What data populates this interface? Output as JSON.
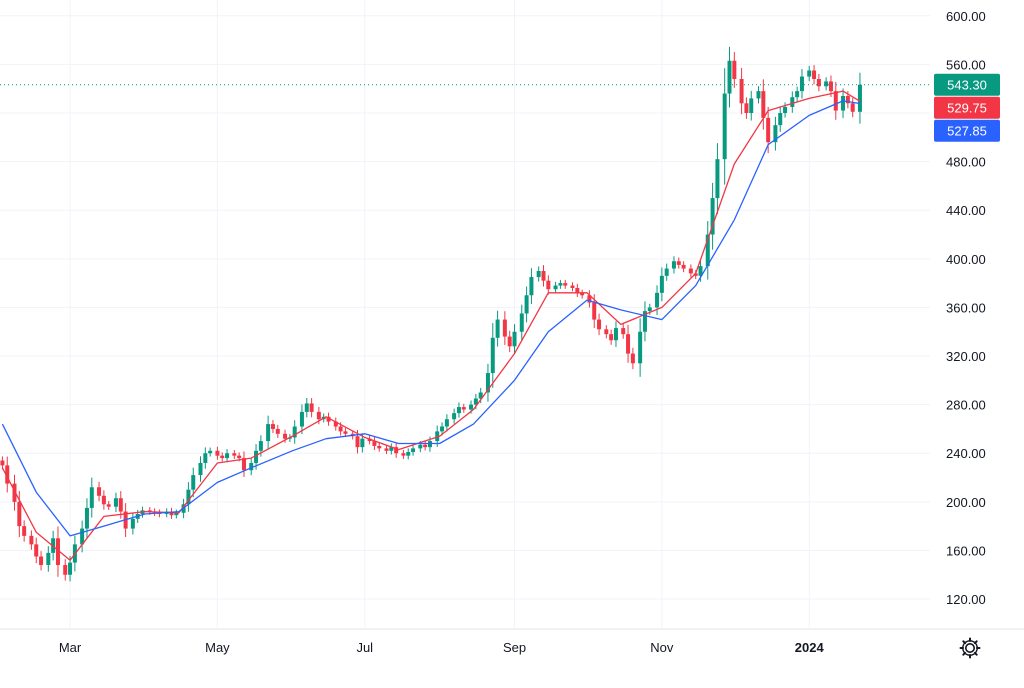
{
  "chart_data": {
    "type": "candlestick",
    "y_ticks": [
      "120.00",
      "160.00",
      "200.00",
      "240.00",
      "280.00",
      "320.00",
      "360.00",
      "400.00",
      "440.00",
      "480.00",
      "520.00",
      "560.00",
      "600.00"
    ],
    "y_tick_values": [
      120,
      160,
      200,
      240,
      280,
      320,
      360,
      400,
      440,
      480,
      520,
      560,
      600
    ],
    "ylim": [
      97,
      613
    ],
    "x_ticks": [
      "Mar",
      "May",
      "Jul",
      "Sep",
      "Nov",
      "2024"
    ],
    "x_tick_dates": [
      "2023-03-01",
      "2023-05-01",
      "2023-07-01",
      "2023-09-01",
      "2023-11-01",
      "2024-01-01"
    ],
    "xlim": [
      "2023-01-31",
      "2024-02-20"
    ],
    "grid": true,
    "price_labels": [
      {
        "text": "543.30",
        "value": 543.3,
        "color": "#089981"
      },
      {
        "text": "529.75",
        "value": 529.75,
        "color": "#f23645"
      },
      {
        "text": "527.85",
        "value": 527.85,
        "color": "#2962ff"
      }
    ],
    "last_price_line": {
      "value": 543.3,
      "color": "#089981"
    },
    "close_series": [
      [
        "2023-02-01",
        230
      ],
      [
        "2023-02-03",
        215
      ],
      [
        "2023-02-06",
        200
      ],
      [
        "2023-02-08",
        180
      ],
      [
        "2023-02-10",
        172
      ],
      [
        "2023-02-13",
        165
      ],
      [
        "2023-02-15",
        155
      ],
      [
        "2023-02-17",
        148
      ],
      [
        "2023-02-20",
        158
      ],
      [
        "2023-02-22",
        170
      ],
      [
        "2023-02-24",
        148
      ],
      [
        "2023-02-27",
        140
      ],
      [
        "2023-03-01",
        150
      ],
      [
        "2023-03-03",
        165
      ],
      [
        "2023-03-06",
        178
      ],
      [
        "2023-03-08",
        195
      ],
      [
        "2023-03-10",
        212
      ],
      [
        "2023-03-13",
        205
      ],
      [
        "2023-03-15",
        198
      ],
      [
        "2023-03-17",
        196
      ],
      [
        "2023-03-20",
        203
      ],
      [
        "2023-03-22",
        192
      ],
      [
        "2023-03-24",
        178
      ],
      [
        "2023-03-27",
        186
      ],
      [
        "2023-03-29",
        190
      ],
      [
        "2023-03-31",
        193
      ],
      [
        "2023-04-03",
        192
      ],
      [
        "2023-04-05",
        191
      ],
      [
        "2023-04-07",
        190
      ],
      [
        "2023-04-10",
        192
      ],
      [
        "2023-04-12",
        189
      ],
      [
        "2023-04-14",
        191
      ],
      [
        "2023-04-17",
        198
      ],
      [
        "2023-04-19",
        210
      ],
      [
        "2023-04-21",
        222
      ],
      [
        "2023-04-24",
        232
      ],
      [
        "2023-04-26",
        240
      ],
      [
        "2023-04-28",
        242
      ],
      [
        "2023-05-01",
        238
      ],
      [
        "2023-05-03",
        236
      ],
      [
        "2023-05-05",
        240
      ],
      [
        "2023-05-08",
        238
      ],
      [
        "2023-05-10",
        236
      ],
      [
        "2023-05-12",
        226
      ],
      [
        "2023-05-15",
        232
      ],
      [
        "2023-05-17",
        242
      ],
      [
        "2023-05-19",
        250
      ],
      [
        "2023-05-22",
        264
      ],
      [
        "2023-05-24",
        260
      ],
      [
        "2023-05-26",
        256
      ],
      [
        "2023-05-29",
        252
      ],
      [
        "2023-05-31",
        253
      ],
      [
        "2023-06-02",
        262
      ],
      [
        "2023-06-05",
        274
      ],
      [
        "2023-06-07",
        281
      ],
      [
        "2023-06-09",
        274
      ],
      [
        "2023-06-12",
        268
      ],
      [
        "2023-06-14",
        270
      ],
      [
        "2023-06-16",
        266
      ],
      [
        "2023-06-19",
        262
      ],
      [
        "2023-06-21",
        258
      ],
      [
        "2023-06-23",
        256
      ],
      [
        "2023-06-26",
        254
      ],
      [
        "2023-06-28",
        245
      ],
      [
        "2023-06-30",
        252
      ],
      [
        "2023-07-03",
        250
      ],
      [
        "2023-07-05",
        246
      ],
      [
        "2023-07-07",
        244
      ],
      [
        "2023-07-10",
        242
      ],
      [
        "2023-07-12",
        245
      ],
      [
        "2023-07-14",
        240
      ],
      [
        "2023-07-17",
        238
      ],
      [
        "2023-07-19",
        241
      ],
      [
        "2023-07-21",
        244
      ],
      [
        "2023-07-24",
        247
      ],
      [
        "2023-07-26",
        245
      ],
      [
        "2023-07-28",
        250
      ],
      [
        "2023-07-31",
        258
      ],
      [
        "2023-08-02",
        262
      ],
      [
        "2023-08-04",
        268
      ],
      [
        "2023-08-07",
        273
      ],
      [
        "2023-08-09",
        278
      ],
      [
        "2023-08-11",
        276
      ],
      [
        "2023-08-14",
        280
      ],
      [
        "2023-08-16",
        285
      ],
      [
        "2023-08-18",
        290
      ],
      [
        "2023-08-21",
        306
      ],
      [
        "2023-08-23",
        335
      ],
      [
        "2023-08-25",
        350
      ],
      [
        "2023-08-28",
        336
      ],
      [
        "2023-08-30",
        328
      ],
      [
        "2023-09-01",
        340
      ],
      [
        "2023-09-04",
        355
      ],
      [
        "2023-09-06",
        370
      ],
      [
        "2023-09-08",
        385
      ],
      [
        "2023-09-11",
        390
      ],
      [
        "2023-09-13",
        382
      ],
      [
        "2023-09-15",
        375
      ],
      [
        "2023-09-18",
        378
      ],
      [
        "2023-09-20",
        380
      ],
      [
        "2023-09-22",
        378
      ],
      [
        "2023-09-25",
        376
      ],
      [
        "2023-09-27",
        372
      ],
      [
        "2023-09-29",
        370
      ],
      [
        "2023-10-02",
        364
      ],
      [
        "2023-10-04",
        350
      ],
      [
        "2023-10-06",
        342
      ],
      [
        "2023-10-09",
        338
      ],
      [
        "2023-10-11",
        333
      ],
      [
        "2023-10-13",
        343
      ],
      [
        "2023-10-16",
        338
      ],
      [
        "2023-10-18",
        322
      ],
      [
        "2023-10-20",
        314
      ],
      [
        "2023-10-23",
        340
      ],
      [
        "2023-10-25",
        357
      ],
      [
        "2023-10-27",
        360
      ],
      [
        "2023-10-30",
        372
      ],
      [
        "2023-11-01",
        386
      ],
      [
        "2023-11-03",
        392
      ],
      [
        "2023-11-06",
        398
      ],
      [
        "2023-11-08",
        395
      ],
      [
        "2023-11-10",
        392
      ],
      [
        "2023-11-13",
        388
      ],
      [
        "2023-11-15",
        386
      ],
      [
        "2023-11-17",
        394
      ],
      [
        "2023-11-20",
        420
      ],
      [
        "2023-11-22",
        450
      ],
      [
        "2023-11-24",
        482
      ],
      [
        "2023-11-27",
        536
      ],
      [
        "2023-11-29",
        563
      ],
      [
        "2023-12-01",
        548
      ],
      [
        "2023-12-04",
        528
      ],
      [
        "2023-12-06",
        520
      ],
      [
        "2023-12-08",
        532
      ],
      [
        "2023-12-11",
        538
      ],
      [
        "2023-12-13",
        516
      ],
      [
        "2023-12-15",
        496
      ],
      [
        "2023-12-18",
        510
      ],
      [
        "2023-12-20",
        520
      ],
      [
        "2023-12-22",
        525
      ],
      [
        "2023-12-25",
        533
      ],
      [
        "2023-12-27",
        538
      ],
      [
        "2023-12-29",
        550
      ],
      [
        "2024-01-01",
        555
      ],
      [
        "2024-01-03",
        548
      ],
      [
        "2024-01-05",
        542
      ],
      [
        "2024-01-08",
        546
      ],
      [
        "2024-01-10",
        538
      ],
      [
        "2024-01-12",
        522
      ],
      [
        "2024-01-15",
        534
      ],
      [
        "2024-01-17",
        528
      ],
      [
        "2024-01-19",
        521
      ],
      [
        "2024-01-22",
        543.3
      ]
    ],
    "ma_fast": {
      "color": "#f23645",
      "points": [
        [
          "2023-02-01",
          228
        ],
        [
          "2023-02-15",
          175
        ],
        [
          "2023-03-01",
          152
        ],
        [
          "2023-03-15",
          188
        ],
        [
          "2023-04-01",
          192
        ],
        [
          "2023-04-15",
          191
        ],
        [
          "2023-05-01",
          232
        ],
        [
          "2023-05-15",
          236
        ],
        [
          "2023-06-01",
          254
        ],
        [
          "2023-06-15",
          270
        ],
        [
          "2023-07-01",
          253
        ],
        [
          "2023-07-15",
          243
        ],
        [
          "2023-08-01",
          254
        ],
        [
          "2023-08-15",
          276
        ],
        [
          "2023-09-01",
          322
        ],
        [
          "2023-09-15",
          372
        ],
        [
          "2023-10-01",
          372
        ],
        [
          "2023-10-15",
          346
        ],
        [
          "2023-11-01",
          360
        ],
        [
          "2023-11-15",
          388
        ],
        [
          "2023-12-01",
          478
        ],
        [
          "2023-12-15",
          522
        ],
        [
          "2024-01-01",
          532
        ],
        [
          "2024-01-15",
          538
        ],
        [
          "2024-01-22",
          529.75
        ]
      ]
    },
    "ma_slow": {
      "color": "#2962ff",
      "points": [
        [
          "2023-02-01",
          264
        ],
        [
          "2023-02-15",
          208
        ],
        [
          "2023-03-01",
          172
        ],
        [
          "2023-03-15",
          180
        ],
        [
          "2023-04-01",
          190
        ],
        [
          "2023-04-15",
          192
        ],
        [
          "2023-05-01",
          216
        ],
        [
          "2023-05-15",
          228
        ],
        [
          "2023-06-01",
          242
        ],
        [
          "2023-06-15",
          252
        ],
        [
          "2023-07-01",
          256
        ],
        [
          "2023-07-15",
          248
        ],
        [
          "2023-08-01",
          248
        ],
        [
          "2023-08-15",
          264
        ],
        [
          "2023-09-01",
          300
        ],
        [
          "2023-09-15",
          340
        ],
        [
          "2023-10-01",
          366
        ],
        [
          "2023-10-15",
          358
        ],
        [
          "2023-11-01",
          350
        ],
        [
          "2023-11-15",
          378
        ],
        [
          "2023-12-01",
          432
        ],
        [
          "2023-12-15",
          494
        ],
        [
          "2024-01-01",
          518
        ],
        [
          "2024-01-15",
          530
        ],
        [
          "2024-01-22",
          527.85
        ]
      ]
    },
    "up_color": "#089981",
    "down_color": "#f23645"
  },
  "ui": {
    "settings_icon": "gear-icon"
  }
}
